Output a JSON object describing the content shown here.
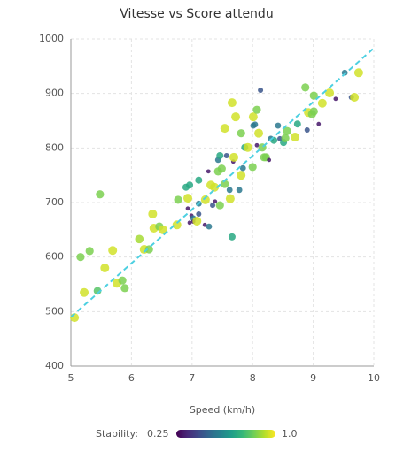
{
  "chart_data": {
    "type": "scatter",
    "title": "Vitesse vs Score attendu",
    "x_label": "Speed (km/h)",
    "xlim": [
      5,
      10
    ],
    "xticks": [
      5,
      6,
      7,
      8,
      9,
      10
    ],
    "ylim": [
      400,
      1000
    ],
    "yticks": [
      400,
      500,
      600,
      700,
      800,
      900,
      1000
    ],
    "grid": true,
    "colormap": "viridis",
    "colorbar_label": "Stability:",
    "clim": [
      0.25,
      {
        "value": 1,
        "label": "1.0"
      }
    ],
    "series": [
      {
        "x": [
          5.06,
          5.16,
          5.22,
          5.31,
          5.44,
          5.48,
          5.56,
          5.69,
          5.76,
          5.85,
          5.89,
          6.13,
          6.21,
          6.29,
          6.35,
          6.37,
          6.46,
          6.52,
          6.75,
          6.77,
          6.9,
          6.93,
          6.93,
          6.96,
          6.96,
          6.99,
          7.02,
          7.02,
          7.08,
          7.11,
          7.11,
          7.11,
          7.21,
          7.22,
          7.27,
          7.28,
          7.31,
          7.34,
          7.38,
          7.37,
          7.43,
          7.43,
          7.46,
          7.46,
          7.49,
          7.54,
          7.54,
          7.57,
          7.62,
          7.63,
          7.66,
          7.66,
          7.68,
          7.69,
          7.72,
          7.78,
          7.81,
          7.81,
          7.84,
          7.87,
          7.92,
          8.01,
          8.01,
          8.0,
          8.04,
          8.07,
          8.07,
          8.1,
          8.13,
          8.16,
          8.19,
          8.22,
          8.27,
          8.3,
          8.35,
          8.42,
          8.45,
          8.51,
          8.54,
          8.57,
          8.7,
          8.74,
          8.87,
          8.9,
          8.92,
          8.98,
          9.01,
          9.01,
          9.09,
          9.15,
          9.27,
          9.37,
          9.52,
          9.63,
          9.68,
          9.75
        ],
        "values": [
          489,
          600,
          535,
          611,
          538,
          715,
          580,
          612,
          552,
          557,
          543,
          633,
          614,
          614,
          679,
          653,
          656,
          650,
          659,
          705,
          728,
          689,
          708,
          732,
          663,
          676,
          671,
          665,
          666,
          698,
          679,
          741,
          659,
          705,
          757,
          656,
          732,
          695,
          702,
          728,
          778,
          757,
          786,
          695,
          762,
          836,
          734,
          786,
          723,
          707,
          637,
          883,
          775,
          783,
          857,
          723,
          750,
          827,
          763,
          801,
          801,
          857,
          841,
          765,
          843,
          870,
          805,
          827,
          906,
          801,
          783,
          783,
          778,
          817,
          814,
          841,
          817,
          810,
          818,
          831,
          820,
          844,
          911,
          833,
          865,
          862,
          896,
          867,
          844,
          882,
          901,
          890,
          938,
          893,
          893,
          938
        ],
        "stability": [
          0.95,
          0.85,
          0.95,
          0.85,
          0.8,
          0.85,
          0.95,
          0.95,
          0.95,
          0.85,
          0.85,
          0.9,
          0.95,
          0.85,
          0.95,
          0.95,
          0.85,
          0.95,
          0.95,
          0.85,
          0.7,
          0.3,
          0.95,
          0.7,
          0.3,
          0.3,
          0.55,
          0.3,
          0.95,
          0.55,
          0.45,
          0.7,
          0.3,
          0.95,
          0.3,
          0.55,
          0.95,
          0.45,
          0.3,
          0.95,
          0.55,
          0.85,
          0.7,
          0.85,
          0.85,
          0.95,
          0.85,
          0.45,
          0.55,
          0.95,
          0.7,
          0.95,
          0.3,
          0.95,
          0.95,
          0.55,
          0.95,
          0.85,
          0.55,
          0.7,
          0.95,
          0.95,
          0.55,
          0.85,
          0.55,
          0.85,
          0.3,
          0.95,
          0.45,
          0.85,
          0.85,
          0.85,
          0.3,
          0.55,
          0.7,
          0.55,
          0.45,
          0.7,
          0.85,
          0.85,
          0.95,
          0.7,
          0.85,
          0.45,
          0.95,
          0.85,
          0.85,
          0.85,
          0.3,
          0.95,
          0.95,
          0.3,
          0.55,
          0.45,
          0.95,
          0.95
        ]
      }
    ],
    "trend_line": {
      "x": [
        5,
        10
      ],
      "values": [
        490,
        983
      ],
      "color": "#4dd0e1"
    }
  }
}
